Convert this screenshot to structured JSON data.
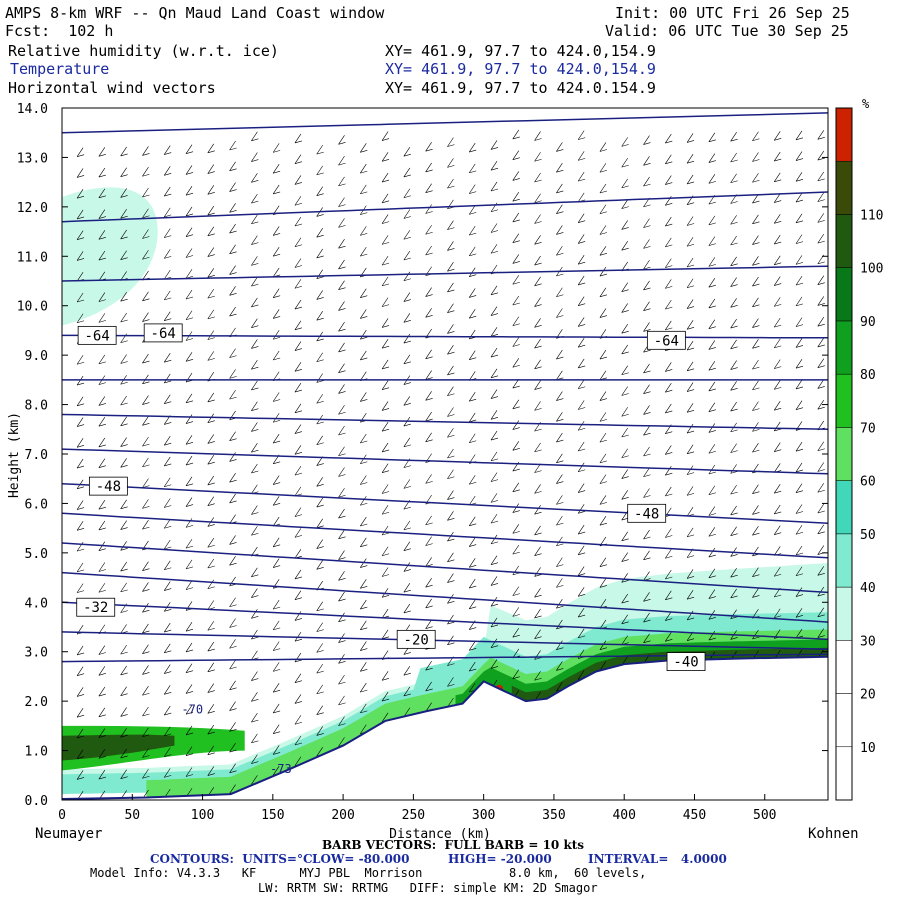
{
  "header": {
    "title": "AMPS 8-km WRF -- Qn Maud Land Coast window",
    "init": "Init: 00 UTC Fri 26 Sep 25",
    "fcst": "Fcst:  102 h",
    "valid": "Valid: 06 UTC Tue 30 Sep 25",
    "fields": [
      {
        "name": "Relative humidity (w.r.t. ice)",
        "xy": "XY= 461.9, 97.7 to 424.0,154.9"
      },
      {
        "name": "Temperature",
        "xy": "XY= 461.9, 97.7 to 424.0,154.9"
      },
      {
        "name": "Horizontal wind vectors",
        "xy": "XY= 461.9, 97.7 to 424.0.154.9"
      }
    ]
  },
  "colors": {
    "temperature_contour": "#1a2080",
    "colorbar": [
      "#ffffff",
      "#ffffff",
      "#ffffff",
      "#c8f8e8",
      "#80ead0",
      "#40d8b8",
      "#60e060",
      "#20c020",
      "#10a020",
      "#087818",
      "#1f5a10",
      "#3a4a08",
      "#cc2200"
    ]
  },
  "chart_data": {
    "type": "cross-section",
    "xlabel": "Distance (km)",
    "ylabel": "Height (km)",
    "xlim": [
      0,
      545
    ],
    "ylim": [
      0.0,
      14.0
    ],
    "x_ticks": [
      "0",
      "50",
      "100",
      "150",
      "200",
      "250",
      "300",
      "350",
      "400",
      "450",
      "500"
    ],
    "y_ticks": [
      "0.0",
      "1.0",
      "2.0",
      "3.0",
      "4.0",
      "5.0",
      "6.0",
      "7.0",
      "8.0",
      "9.0",
      "10.0",
      "11.0",
      "12.0",
      "13.0",
      "14.0"
    ],
    "left_endpoint": "Neumayer",
    "right_endpoint": "Kohnen",
    "terrain": [
      [
        0,
        0.02
      ],
      [
        60,
        0.05
      ],
      [
        120,
        0.12
      ],
      [
        160,
        0.6
      ],
      [
        200,
        1.1
      ],
      [
        230,
        1.6
      ],
      [
        260,
        1.8
      ],
      [
        285,
        1.95
      ],
      [
        300,
        2.4
      ],
      [
        315,
        2.2
      ],
      [
        330,
        2.0
      ],
      [
        345,
        2.05
      ],
      [
        360,
        2.3
      ],
      [
        380,
        2.6
      ],
      [
        400,
        2.75
      ],
      [
        430,
        2.82
      ],
      [
        480,
        2.86
      ],
      [
        545,
        2.9
      ]
    ],
    "colorbar": {
      "unit": "%",
      "labels": [
        "10",
        "20",
        "30",
        "40",
        "50",
        "60",
        "70",
        "80",
        "90",
        "100",
        "110"
      ]
    },
    "contour_labels": [
      {
        "text": "-64",
        "x": 25,
        "y": 9.4
      },
      {
        "text": "-64",
        "x": 72,
        "y": 9.45
      },
      {
        "text": "-64",
        "x": 430,
        "y": 9.3
      },
      {
        "text": "-48",
        "x": 33,
        "y": 6.35
      },
      {
        "text": "-48",
        "x": 416,
        "y": 5.8
      },
      {
        "text": "-32",
        "x": 24,
        "y": 3.9
      },
      {
        "text": "-20",
        "x": 252,
        "y": 3.25
      },
      {
        "text": "-40",
        "x": 444,
        "y": 2.8
      }
    ],
    "extra_labels": [
      {
        "text": "-70",
        "x": 85,
        "y": 1.75
      },
      {
        "text": "-73",
        "x": 148,
        "y": 0.55
      }
    ],
    "temperature_contours_y_left": [
      13.5,
      11.7,
      10.5,
      9.4,
      8.5,
      7.8,
      7.1,
      6.4,
      5.8,
      5.2,
      4.6,
      4.0,
      3.4,
      2.8,
      2.3,
      1.8
    ],
    "temperature_contours_y_right": [
      13.9,
      12.3,
      10.8,
      9.35,
      8.5,
      7.5,
      6.6,
      5.6,
      4.9,
      4.2,
      3.6,
      3.25,
      3.05,
      2.95
    ]
  },
  "footer": {
    "barb_info": "BARB VECTORS:  FULL BARB = 10 kts",
    "contours_units_label": "CONTOURS:  UNITS=°C",
    "low": "LOW= -80.000",
    "high": "HIGH= -20.000",
    "interval": "INTERVAL=   4.0000",
    "model_info_1": "Model Info: V4.3.3   KF      MYJ PBL  Morrison            8.0 km,  60 levels,",
    "model_info_2": "LW: RRTM SW: RRTMG   DIFF: simple KM: 2D Smagor"
  }
}
